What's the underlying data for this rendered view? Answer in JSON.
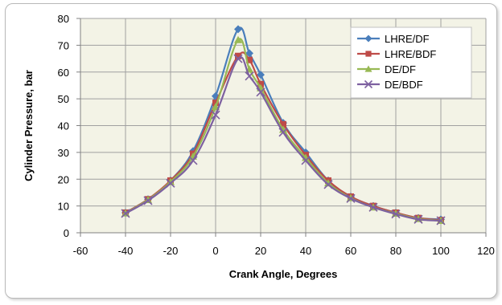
{
  "chart_data": {
    "type": "line",
    "title": "",
    "xlabel": "Crank Angle, Degrees",
    "ylabel": "Cylinder Pressure, bar",
    "xlim": [
      -60,
      120
    ],
    "ylim": [
      0,
      80
    ],
    "x_ticks": [
      -60,
      -40,
      -20,
      0,
      20,
      40,
      60,
      80,
      100,
      120
    ],
    "y_ticks": [
      0,
      10,
      20,
      30,
      40,
      50,
      60,
      70,
      80
    ],
    "grid": true,
    "legend_position": "top-right",
    "plot_background": "#f3f3e6",
    "x": [
      -40,
      -30,
      -20,
      -10,
      0,
      10,
      15,
      20,
      30,
      40,
      50,
      60,
      70,
      80,
      90,
      100
    ],
    "series": [
      {
        "name": "LHRE/DF",
        "marker": "diamond",
        "color": "#4a7ebb",
        "values": [
          7.5,
          12.5,
          19.5,
          30.5,
          51,
          76,
          67,
          59,
          41,
          30,
          19.5,
          13.5,
          10,
          7.5,
          5.5,
          5
        ]
      },
      {
        "name": "LHRE/BDF",
        "marker": "square",
        "color": "#be4b48",
        "values": [
          7.5,
          12.5,
          19.5,
          29.5,
          48.5,
          66,
          64.5,
          55.5,
          40.5,
          29,
          19.5,
          13.5,
          10,
          7.5,
          5.5,
          4.7
        ]
      },
      {
        "name": "DE/DF",
        "marker": "triangle",
        "color": "#98b954",
        "values": [
          7.3,
          12.3,
          19,
          28.5,
          47,
          72,
          61,
          54,
          38.5,
          28,
          18.5,
          13,
          9.5,
          7.2,
          5.2,
          4.5
        ]
      },
      {
        "name": "DE/BDF",
        "marker": "x",
        "color": "#7d60a0",
        "values": [
          7.2,
          12,
          18.5,
          27,
          44,
          65,
          58.5,
          52.5,
          37.5,
          27,
          18,
          12.8,
          9.5,
          7,
          5,
          4.5
        ]
      }
    ]
  }
}
